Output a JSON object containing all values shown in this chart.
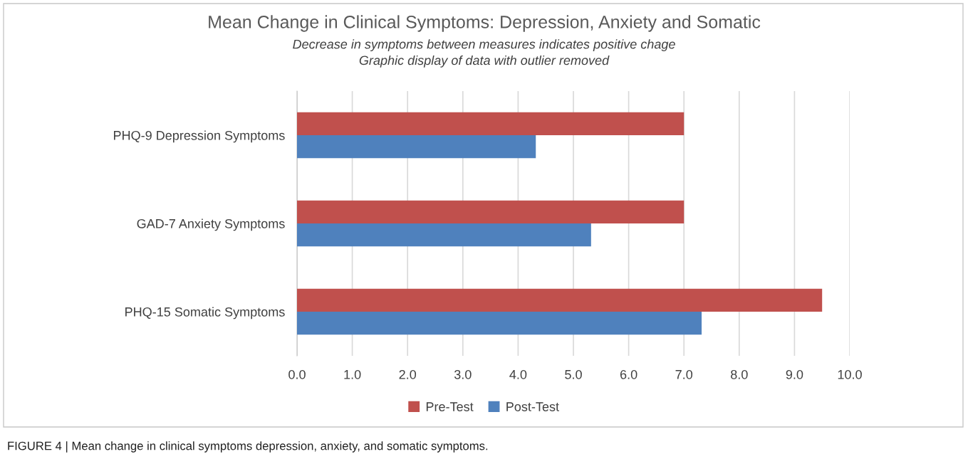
{
  "chart_data": {
    "type": "bar",
    "orientation": "horizontal",
    "title": "Mean Change in Clinical Symptoms: Depression, Anxiety and Somatic",
    "subtitle": "Decrease in symptoms between measures indicates positive chage\nGraphic display of data with outlier removed",
    "categories": [
      "PHQ-9 Depression Symptoms",
      "GAD-7 Anxiety Symptoms",
      "PHQ-15 Somatic Symptoms"
    ],
    "series": [
      {
        "name": "Pre-Test",
        "color": "#c0504d",
        "values": [
          7.0,
          7.0,
          9.5
        ]
      },
      {
        "name": "Post-Test",
        "color": "#4f81bd",
        "values": [
          4.32,
          5.32,
          7.32
        ]
      }
    ],
    "xlim": [
      0,
      10
    ],
    "xticks": [
      {
        "value": 0,
        "label": "0.0"
      },
      {
        "value": 1,
        "label": "1.0"
      },
      {
        "value": 2,
        "label": "2.0"
      },
      {
        "value": 3,
        "label": "3.0"
      },
      {
        "value": 4,
        "label": "4.0"
      },
      {
        "value": 5,
        "label": "5.0"
      },
      {
        "value": 6,
        "label": "6.0"
      },
      {
        "value": 7,
        "label": "7.0"
      },
      {
        "value": 8,
        "label": "8.0"
      },
      {
        "value": 9,
        "label": "9.0"
      },
      {
        "value": 10,
        "label": "10.0"
      }
    ],
    "grid": "x",
    "legend": "bottom",
    "annotations": [
      "FIGURE 4 | Mean change in clinical symptoms depression, anxiety, and somatic symptoms."
    ]
  }
}
